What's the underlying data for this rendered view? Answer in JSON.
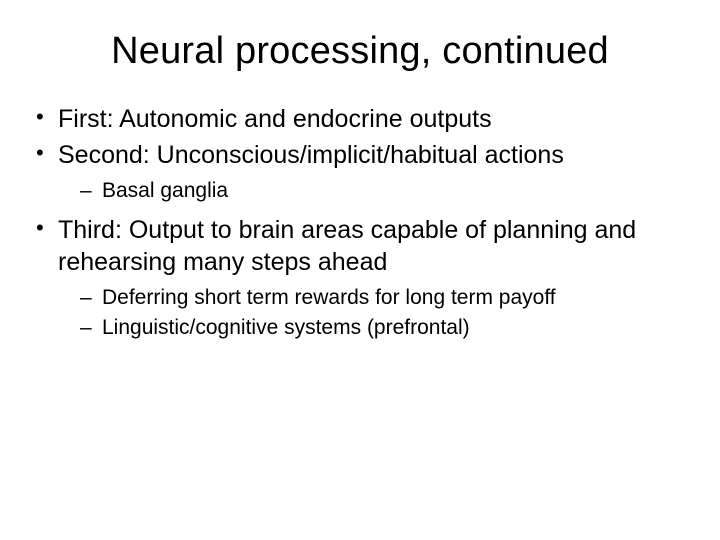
{
  "slide": {
    "title": "Neural processing, continued",
    "title_fontsize": 38,
    "body_fontsize": 25,
    "sub_fontsize": 21,
    "background_color": "#ffffff",
    "text_color": "#000000",
    "bullets": [
      {
        "text": "First: Autonomic and endocrine outputs",
        "children": []
      },
      {
        "text": "Second: Unconscious/implicit/habitual actions",
        "children": [
          {
            "text": "Basal ganglia"
          }
        ]
      },
      {
        "text": "Third: Output to brain areas capable of planning and rehearsing many steps ahead",
        "children": [
          {
            "text": "Deferring short term rewards for long term payoff"
          },
          {
            "text": "Linguistic/cognitive systems (prefrontal)"
          }
        ]
      }
    ]
  }
}
